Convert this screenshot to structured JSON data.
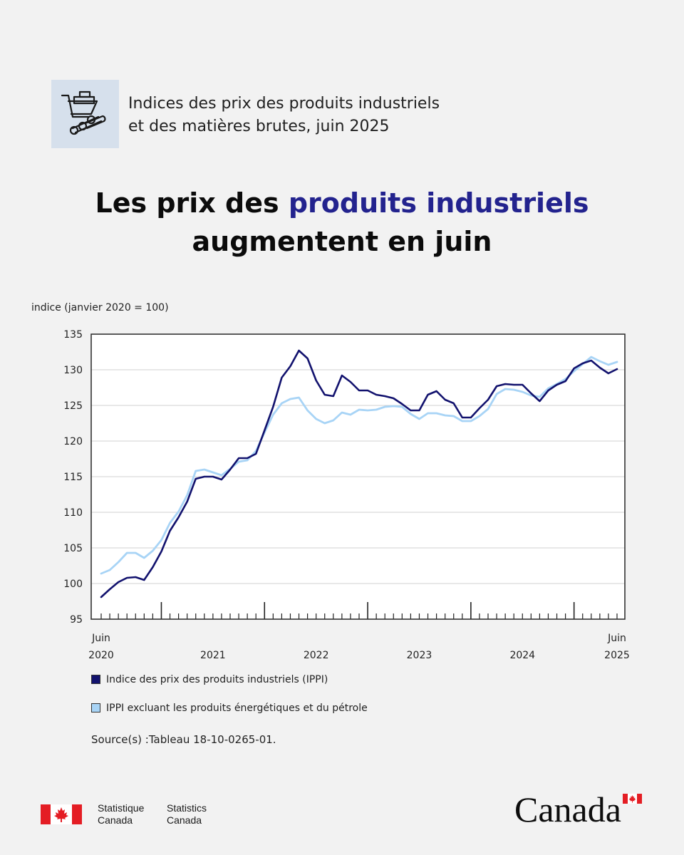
{
  "header": {
    "icon": "wheelbarrow-logs-icon",
    "line1": "Indices des prix des produits industriels",
    "line2": "et des matières brutes, juin 2025"
  },
  "headline": {
    "part1": "Les prix des ",
    "accent": "produits industriels",
    "line2": "augmentent en juin"
  },
  "colors": {
    "accent": "#23238e",
    "series1": "#12126e",
    "series2": "#a8d4f6",
    "icon_bg": "#d6e0ec",
    "flag_red": "#e41d24"
  },
  "chart_data": {
    "type": "line",
    "ylabel": "indice (janvier 2020 = 100)",
    "ylim": [
      95,
      135
    ],
    "yticks": [
      95,
      100,
      105,
      110,
      115,
      120,
      125,
      130,
      135
    ],
    "x_start": "2020-06",
    "x_end": "2025-06",
    "xtick_labels": [
      {
        "month": "2020-06",
        "line1": "Juin",
        "line2": "2020"
      },
      {
        "month": "2021-01",
        "line1": "",
        "line2": "2021"
      },
      {
        "month": "2022-01",
        "line1": "",
        "line2": "2022"
      },
      {
        "month": "2023-01",
        "line1": "",
        "line2": "2023"
      },
      {
        "month": "2024-01",
        "line1": "",
        "line2": "2024"
      },
      {
        "month": "2025-06",
        "line1": "Juin",
        "line2": "2025"
      }
    ],
    "series": [
      {
        "name": "Indice des prix des produits industriels (IPPI)",
        "color": "#12126e",
        "values": [
          98.1,
          99.2,
          100.2,
          100.8,
          100.9,
          100.5,
          102.3,
          104.5,
          107.4,
          109.3,
          111.5,
          114.7,
          115.0,
          115.0,
          114.6,
          116.0,
          117.6,
          117.6,
          118.2,
          121.5,
          124.8,
          128.9,
          130.5,
          132.7,
          131.6,
          128.5,
          126.5,
          126.3,
          129.2,
          128.3,
          127.1,
          127.1,
          126.5,
          126.3,
          126.0,
          125.2,
          124.3,
          124.3,
          126.5,
          127.0,
          125.8,
          125.3,
          123.3,
          123.3,
          124.6,
          125.8,
          127.7,
          128.0,
          127.9,
          127.9,
          126.7,
          125.6,
          127.1,
          127.9,
          128.4,
          130.2,
          130.9,
          131.3,
          130.3,
          129.5,
          130.1
        ]
      },
      {
        "name": "IPPI excluant les produits énergétiques et du pétrole",
        "color": "#a8d4f6",
        "values": [
          101.4,
          101.9,
          103.0,
          104.3,
          104.3,
          103.6,
          104.6,
          106.1,
          108.5,
          110.1,
          112.4,
          115.8,
          116.0,
          115.6,
          115.2,
          116.1,
          117.1,
          117.3,
          118.6,
          121.2,
          123.7,
          125.3,
          125.9,
          126.1,
          124.3,
          123.1,
          122.5,
          122.9,
          124.0,
          123.7,
          124.4,
          124.3,
          124.4,
          124.8,
          124.9,
          124.8,
          123.8,
          123.1,
          123.9,
          123.9,
          123.6,
          123.5,
          122.8,
          122.8,
          123.5,
          124.5,
          126.6,
          127.3,
          127.2,
          126.9,
          126.4,
          126.2,
          127.4,
          128.0,
          128.7,
          129.8,
          130.8,
          131.8,
          131.2,
          130.7,
          131.1
        ]
      }
    ]
  },
  "source": "Source(s) :Tableau 18-10-0265-01.",
  "footer": {
    "agency_fr_1": "Statistique",
    "agency_fr_2": "Canada",
    "agency_en_1": "Statistics",
    "agency_en_2": "Canada",
    "wordmark": "Canada"
  }
}
